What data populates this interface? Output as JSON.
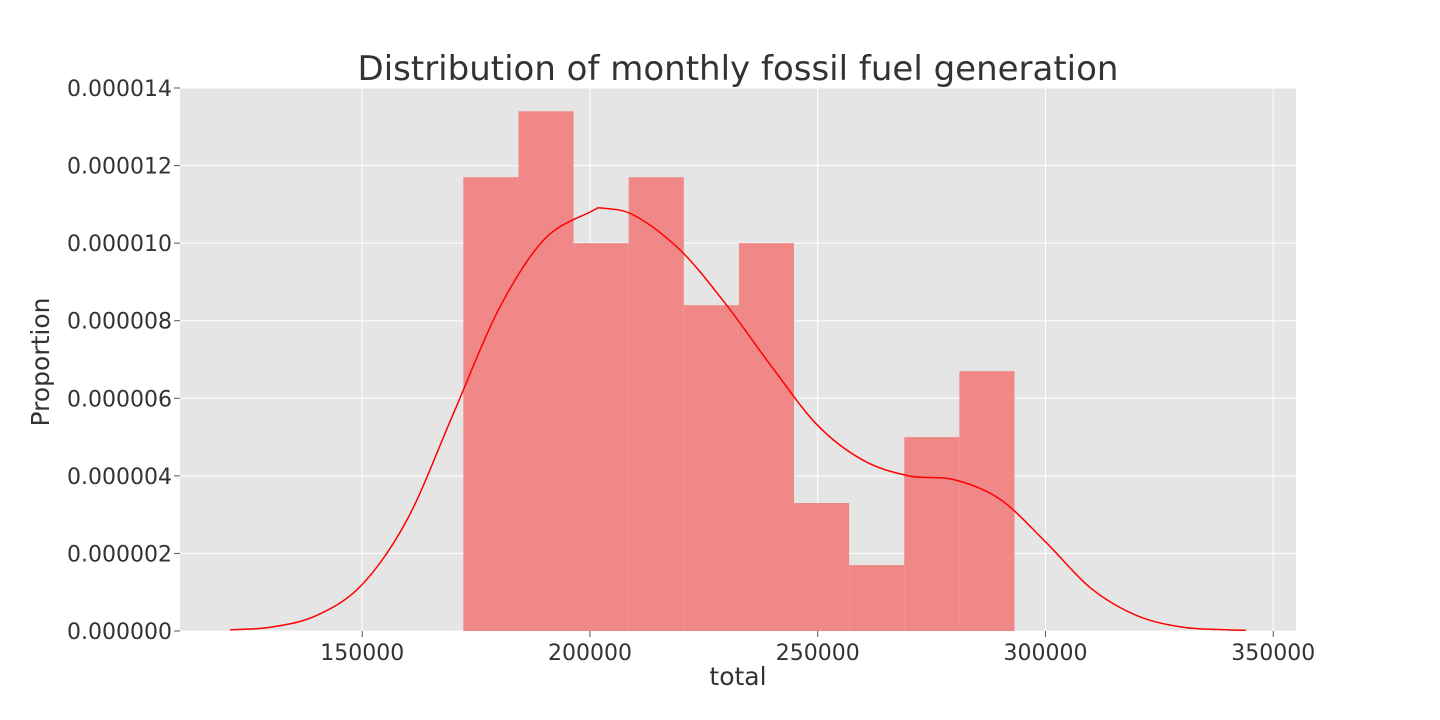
{
  "chart_data": {
    "type": "bar",
    "title": "Distribution of monthly fossil fuel generation",
    "xlabel": "total",
    "ylabel": "Proportion",
    "xlim": [
      110000,
      355000
    ],
    "ylim": [
      0,
      1.4e-05
    ],
    "grid": true,
    "legend": "none",
    "x_ticks": [
      150000,
      200000,
      250000,
      300000,
      350000
    ],
    "x_tick_labels": [
      "150000",
      "200000",
      "250000",
      "300000",
      "350000"
    ],
    "y_ticks": [
      0,
      2e-06,
      4e-06,
      6e-06,
      8e-06,
      1e-05,
      1.2e-05,
      1.4e-05
    ],
    "y_tick_labels": [
      "0.000000",
      "0.000002",
      "0.000004",
      "0.000006",
      "0.000008",
      "0.000010",
      "0.000012",
      "0.000014"
    ],
    "histogram": {
      "bin_edges": [
        172200,
        184300,
        196400,
        208500,
        220600,
        232700,
        244800,
        256900,
        269000,
        281100,
        293200
      ],
      "density": [
        1.17e-05,
        1.34e-05,
        1e-05,
        1.17e-05,
        8.4e-06,
        1e-05,
        3.3e-06,
        1.7e-06,
        5e-06,
        6.7e-06
      ],
      "color": "#F08888"
    },
    "kde": {
      "color": "#FF0000",
      "x": [
        121000,
        130000,
        140000,
        150000,
        160000,
        170000,
        180000,
        190000,
        200000,
        203000,
        210000,
        220000,
        230000,
        240000,
        250000,
        260000,
        270000,
        280000,
        290000,
        300000,
        310000,
        320000,
        330000,
        340000,
        344000
      ],
      "y": [
        3e-08,
        1e-07,
        4e-07,
        1.2e-06,
        2.9e-06,
        5.6e-06,
        8.3e-06,
        1.01e-05,
        1.08e-05,
        1.09e-05,
        1.07e-05,
        9.8e-06,
        8.4e-06,
        6.8e-06,
        5.3e-06,
        4.4e-06,
        4e-06,
        3.9e-06,
        3.4e-06,
        2.3e-06,
        1.1e-06,
        4e-07,
        1e-07,
        3e-08,
        2e-08
      ]
    }
  }
}
